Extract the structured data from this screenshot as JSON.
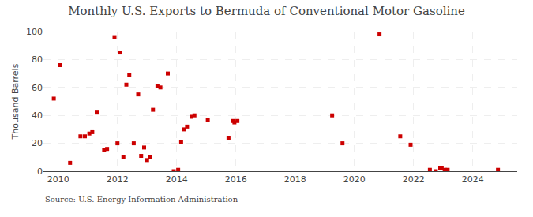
{
  "chart_data": {
    "type": "scatter",
    "title": "Monthly U.S. Exports to Bermuda of Conventional Motor Gasoline",
    "ylabel": "Thousand Barrels",
    "annotations": [
      "Source: U.S. Energy Information Administration"
    ],
    "color": "#cc0000",
    "marker": "square",
    "grid": true,
    "xlim": [
      2009.5,
      2025.5
    ],
    "ylim": [
      0,
      100
    ],
    "xticks": [
      2010,
      2012,
      2014,
      2016,
      2018,
      2020,
      2022,
      2024
    ],
    "yticks": [
      0,
      20,
      40,
      60,
      80,
      100
    ],
    "x": [
      2009.85,
      2010.05,
      2010.4,
      2010.75,
      2010.9,
      2011.05,
      2011.15,
      2011.3,
      2011.55,
      2011.65,
      2011.9,
      2012.0,
      2012.1,
      2012.2,
      2012.3,
      2012.4,
      2012.55,
      2012.7,
      2012.8,
      2012.9,
      2013.0,
      2013.1,
      2013.2,
      2013.35,
      2013.45,
      2013.7,
      2013.9,
      2014.05,
      2014.15,
      2014.25,
      2014.35,
      2014.5,
      2014.6,
      2015.05,
      2015.75,
      2015.9,
      2015.95,
      2016.05,
      2019.25,
      2019.6,
      2020.85,
      2021.55,
      2021.9,
      2022.55,
      2022.75,
      2022.9,
      2022.95,
      2023.05,
      2023.1,
      2023.15,
      2024.85
    ],
    "values": [
      52,
      76,
      6,
      25,
      25,
      27,
      28,
      42,
      15,
      16,
      96,
      20,
      85,
      10,
      62,
      69,
      20,
      55,
      11,
      17,
      8,
      10,
      44,
      61,
      60,
      70,
      0,
      1,
      21,
      30,
      32,
      39,
      40,
      37,
      24,
      36,
      35,
      36,
      40,
      20,
      98,
      25,
      19,
      1,
      0,
      2,
      2,
      1,
      0,
      1,
      1
    ]
  }
}
